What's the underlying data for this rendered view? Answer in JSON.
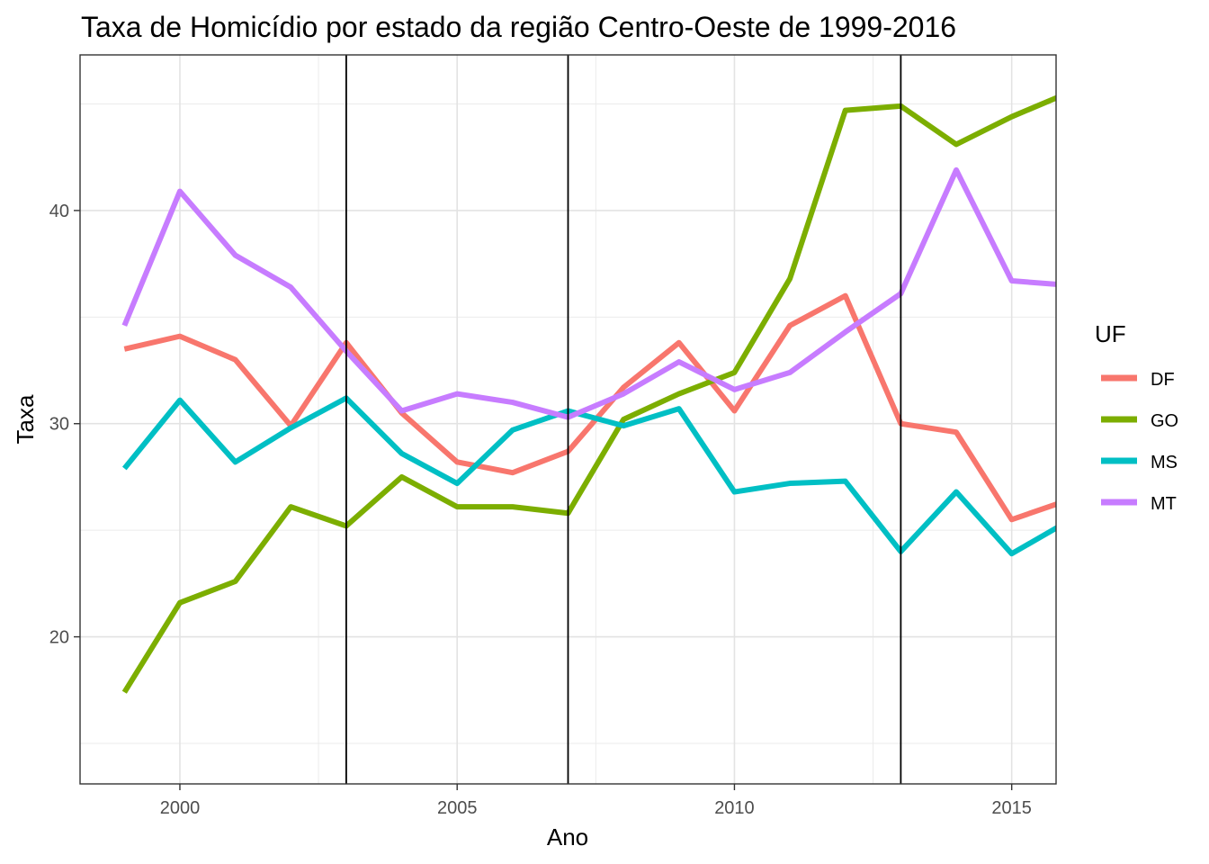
{
  "chart_data": {
    "type": "line",
    "title": "Taxa de Homicídio por estado da região Centro-Oeste de 1999-2016",
    "xlabel": "Ano",
    "ylabel": "Taxa",
    "x": [
      1999,
      2000,
      2001,
      2002,
      2003,
      2004,
      2005,
      2006,
      2007,
      2008,
      2009,
      2010,
      2011,
      2012,
      2013,
      2014,
      2015,
      2016
    ],
    "xlim": [
      1998.2,
      2015.8
    ],
    "ylim": [
      13.1,
      47.3
    ],
    "x_ticks": [
      2000,
      2005,
      2010,
      2015
    ],
    "x_tick_labels": [
      "2000",
      "2005",
      "2010",
      "2015"
    ],
    "y_ticks": [
      20,
      30,
      40
    ],
    "y_tick_labels": [
      "20",
      "30",
      "40"
    ],
    "vlines": [
      2003,
      2007,
      2013
    ],
    "grid": true,
    "legend": {
      "title": "UF",
      "position": "right"
    },
    "series": [
      {
        "name": "DF",
        "color": "#F8766D",
        "values": [
          33.5,
          34.1,
          33.0,
          29.9,
          33.8,
          30.5,
          28.2,
          27.7,
          28.7,
          31.7,
          33.8,
          30.6,
          34.6,
          36.0,
          30.0,
          29.6,
          25.5,
          26.4
        ]
      },
      {
        "name": "GO",
        "color": "#7CAE00",
        "values": [
          17.4,
          21.6,
          22.6,
          26.1,
          25.2,
          27.5,
          26.1,
          26.1,
          25.8,
          30.2,
          31.4,
          32.4,
          36.8,
          44.7,
          44.9,
          43.1,
          44.4,
          45.5
        ]
      },
      {
        "name": "MS",
        "color": "#00BFC4",
        "values": [
          27.9,
          31.1,
          28.2,
          29.8,
          31.2,
          28.6,
          27.2,
          29.7,
          30.6,
          29.9,
          30.7,
          26.8,
          27.2,
          27.3,
          24.0,
          26.8,
          23.9,
          25.4
        ]
      },
      {
        "name": "MT",
        "color": "#C77CFF",
        "values": [
          34.6,
          40.9,
          37.9,
          36.4,
          33.4,
          30.6,
          31.4,
          31.0,
          30.3,
          31.4,
          32.9,
          31.6,
          32.4,
          34.3,
          36.1,
          41.9,
          36.7,
          36.5
        ]
      }
    ]
  }
}
